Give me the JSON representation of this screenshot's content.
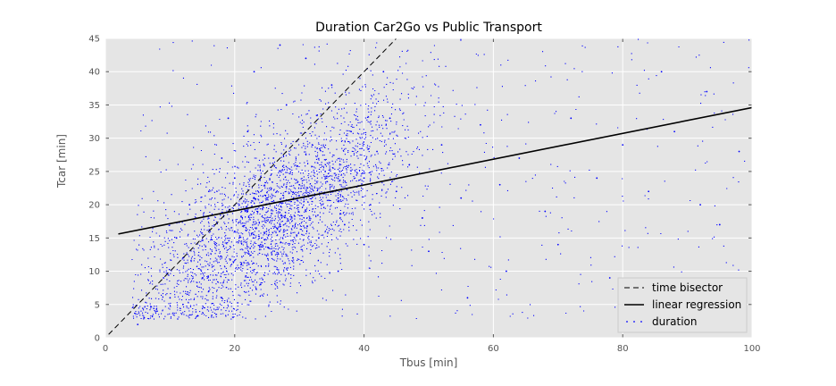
{
  "chart_data": {
    "type": "scatter",
    "title": "Duration Car2Go vs Public Transport",
    "xlabel": "Tbus [min]",
    "ylabel": "Tcar [min]",
    "xlim": [
      0,
      100
    ],
    "ylim": [
      0,
      45
    ],
    "xticks": [
      0,
      20,
      40,
      60,
      80,
      100
    ],
    "yticks": [
      0,
      5,
      10,
      15,
      20,
      25,
      30,
      35,
      40,
      45
    ],
    "grid": true,
    "legend_position": "bottom-right",
    "series": [
      {
        "name": "time bisector",
        "kind": "line",
        "style": "dashed",
        "color": "#000000",
        "x": [
          0.5,
          45
        ],
        "y": [
          0.5,
          45
        ]
      },
      {
        "name": "linear regression",
        "kind": "line",
        "style": "solid",
        "color": "#000000",
        "x": [
          2,
          100
        ],
        "y": [
          15.6,
          34.6
        ]
      },
      {
        "name": "duration",
        "kind": "scatter",
        "color": "#0000ff",
        "points": [
          [
            8,
            4
          ],
          [
            10,
            6
          ],
          [
            12,
            5
          ],
          [
            12,
            12
          ],
          [
            14,
            18
          ],
          [
            15,
            9
          ],
          [
            16,
            22
          ],
          [
            17,
            14
          ],
          [
            18,
            27
          ],
          [
            18,
            6
          ],
          [
            20,
            16
          ],
          [
            20,
            24
          ],
          [
            21,
            11
          ],
          [
            22,
            19
          ],
          [
            22,
            31
          ],
          [
            24,
            8
          ],
          [
            24,
            14
          ],
          [
            25,
            21
          ],
          [
            26,
            27
          ],
          [
            27,
            17
          ],
          [
            28,
            35
          ],
          [
            29,
            12
          ],
          [
            30,
            23
          ],
          [
            31,
            19
          ],
          [
            32,
            29
          ],
          [
            33,
            15
          ],
          [
            34,
            25
          ],
          [
            35,
            38
          ],
          [
            36,
            21
          ],
          [
            37,
            17
          ],
          [
            38,
            31
          ],
          [
            40,
            24
          ],
          [
            41,
            20
          ],
          [
            42,
            28
          ],
          [
            44,
            33
          ],
          [
            45,
            22
          ],
          [
            47,
            26
          ],
          [
            49,
            18
          ],
          [
            52,
            29
          ],
          [
            55,
            21
          ],
          [
            58,
            32
          ],
          [
            61,
            23
          ],
          [
            64,
            27
          ],
          [
            68,
            19
          ],
          [
            72,
            33
          ],
          [
            76,
            24
          ],
          [
            80,
            29
          ],
          [
            84,
            22
          ],
          [
            88,
            31
          ],
          [
            92,
            20
          ],
          [
            95,
            17
          ],
          [
            98,
            28
          ],
          [
            5,
            2
          ],
          [
            6,
            3
          ],
          [
            9,
            9
          ],
          [
            11,
            15
          ],
          [
            13,
            20
          ],
          [
            16,
            7
          ],
          [
            19,
            33
          ],
          [
            23,
            40
          ],
          [
            27,
            44
          ],
          [
            31,
            42
          ],
          [
            36,
            10
          ],
          [
            40,
            14
          ],
          [
            43,
            40
          ],
          [
            50,
            13
          ],
          [
            56,
            6
          ],
          [
            62,
            10
          ],
          [
            70,
            14
          ],
          [
            78,
            9
          ],
          [
            86,
            40
          ],
          [
            93,
            37
          ]
        ]
      }
    ]
  }
}
